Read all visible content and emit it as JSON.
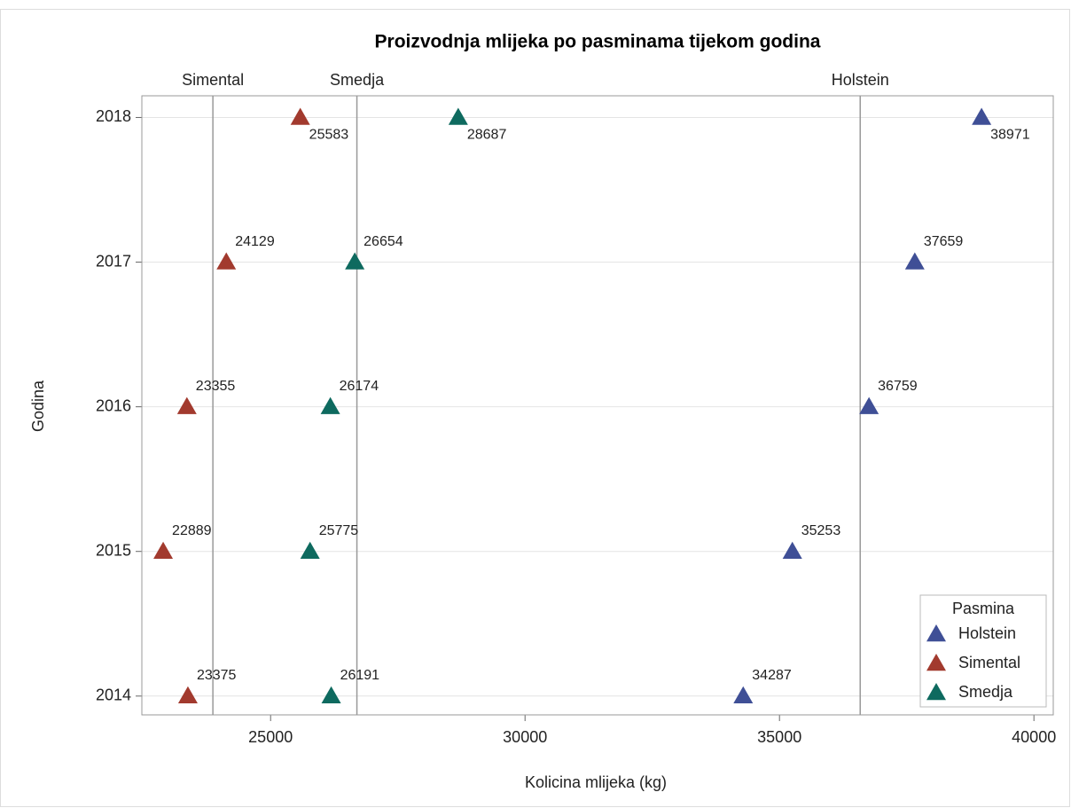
{
  "chart_data": {
    "type": "scatter",
    "title": "Proizvodnja mlijeka po pasminama tijekom godina",
    "x_label": "Kolicina mlijeka (kg)",
    "y_label": "Godina",
    "xlim": [
      22470,
      40380
    ],
    "ylim": [
      2013.87,
      2018.15
    ],
    "xticks": [
      25000,
      30000,
      35000,
      40000
    ],
    "yticks": [
      2014,
      2015,
      2016,
      2017,
      2018
    ],
    "grid": "y",
    "legend": {
      "title": "Pasmina",
      "position": "lower right"
    },
    "series": [
      {
        "name": "Holstein",
        "color": "#3f4f96",
        "x": [
          34287,
          35253,
          36759,
          37659,
          38971
        ],
        "values": [
          2014,
          2015,
          2016,
          2017,
          2018
        ]
      },
      {
        "name": "Simental",
        "color": "#a23a2e",
        "x": [
          23375,
          22889,
          23355,
          24129,
          25583
        ],
        "values": [
          2014,
          2015,
          2016,
          2017,
          2018
        ]
      },
      {
        "name": "Smedja",
        "color": "#0e6a5f",
        "x": [
          26191,
          25775,
          26174,
          26654,
          28687
        ],
        "values": [
          2014,
          2015,
          2016,
          2017,
          2018
        ]
      }
    ],
    "reference_lines": [
      {
        "label": "Simental",
        "x": 23866
      },
      {
        "label": "Smedja",
        "x": 26696
      },
      {
        "label": "Holstein",
        "x": 36586
      }
    ]
  }
}
